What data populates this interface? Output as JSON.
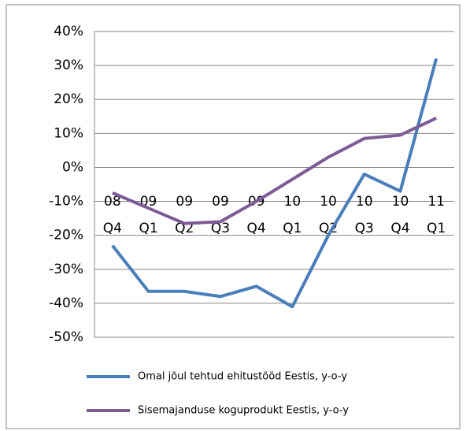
{
  "chart_data": {
    "type": "line",
    "categories": [
      "08 Q4",
      "09 Q1",
      "09 Q2",
      "09 Q3",
      "09 Q4",
      "10 Q1",
      "10 Q2",
      "10 Q3",
      "10 Q4",
      "11 Q1"
    ],
    "series": [
      {
        "name": "Omal jõul tehtud ehitustööd  Eestis, y-o-y",
        "color": "#4a7ebb",
        "values": [
          -23,
          -36.5,
          -36.5,
          -38,
          -35,
          -41,
          -20,
          -2,
          -7,
          32
        ]
      },
      {
        "name": "Sisemajanduse koguprodukt Eestis, y-o-y",
        "color": "#7d5b96",
        "values": [
          -7.5,
          -12,
          -16.5,
          -16,
          -10,
          -3.5,
          3,
          8.5,
          9.5,
          14.5
        ]
      }
    ],
    "ylim": [
      -50,
      40
    ],
    "yticks": [
      {
        "value": 40,
        "label": "40%"
      },
      {
        "value": 30,
        "label": "30%"
      },
      {
        "value": 20,
        "label": "20%"
      },
      {
        "value": 10,
        "label": "10%"
      },
      {
        "value": 0,
        "label": "0%"
      },
      {
        "value": -10,
        "label": "-10%"
      },
      {
        "value": -20,
        "label": "-20%"
      },
      {
        "value": -30,
        "label": "-30%"
      },
      {
        "value": -40,
        "label": "-40%"
      },
      {
        "value": -50,
        "label": "-50%"
      }
    ],
    "grid": true,
    "legend": "bottom"
  }
}
